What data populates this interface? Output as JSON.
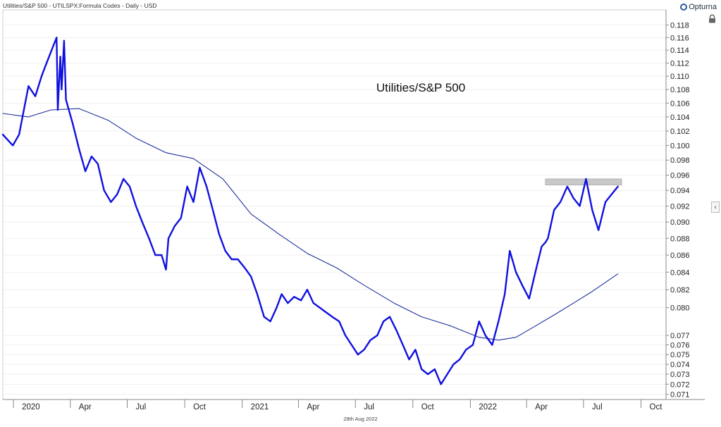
{
  "header": {
    "series_info": "Utilities/S&P 500 - UTILSPX:Formula Codes - Daily - USD"
  },
  "brand": {
    "name": "Opturna",
    "icon": "opturna-logo-icon"
  },
  "footer": {
    "date": "28th Aug 2022"
  },
  "controls": {
    "lock_icon": "lock-icon",
    "collapse_icon": "chevron-left-icon",
    "collapse_glyph": "‹"
  },
  "colors": {
    "price_line": "#1010e0",
    "ma_line": "#1c2e9a",
    "highlight_band": "#c8c8c8",
    "grid": "#e6e6e6",
    "axis": "#888888"
  },
  "chart_data": {
    "type": "line",
    "title": "Utilities/S&P 500",
    "x_tick_labels": [
      "2020",
      "Apr",
      "Jul",
      "Oct",
      "2021",
      "Apr",
      "Jul",
      "Oct",
      "2022",
      "Apr",
      "Jul",
      "Oct"
    ],
    "x_tick_dates": [
      "2020-01-01",
      "2020-04-01",
      "2020-07-01",
      "2020-10-01",
      "2021-01-01",
      "2021-04-01",
      "2021-07-01",
      "2021-10-01",
      "2022-01-01",
      "2022-04-01",
      "2022-07-01",
      "2022-10-01"
    ],
    "y_scale": "log",
    "y_range": [
      0.0705,
      0.1205
    ],
    "y_tick_labels": [
      "0.071",
      "0.072",
      "0.073",
      "0.074",
      "0.075",
      "0.076",
      "0.077",
      "0.080",
      "0.082",
      "0.084",
      "0.086",
      "0.088",
      "0.090",
      "0.092",
      "0.094",
      "0.096",
      "0.098",
      "0.100",
      "0.102",
      "0.104",
      "0.106",
      "0.108",
      "0.110",
      "0.112",
      "0.114",
      "0.116",
      "0.118"
    ],
    "x_range": [
      "2019-12-15",
      "2022-11-10"
    ],
    "highlight_band": {
      "x_start": "2022-05-01",
      "x_end": "2022-08-31",
      "y_low": 0.0947,
      "y_high": 0.0955
    },
    "series": [
      {
        "name": "Utilities/S&P 500",
        "x": [
          "2019-12-15",
          "2019-12-31",
          "2020-01-10",
          "2020-01-25",
          "2020-02-05",
          "2020-02-15",
          "2020-02-21",
          "2020-03-04",
          "2020-03-10",
          "2020-03-12",
          "2020-03-16",
          "2020-03-18",
          "2020-03-22",
          "2020-03-25",
          "2020-04-05",
          "2020-04-15",
          "2020-04-25",
          "2020-05-05",
          "2020-05-15",
          "2020-05-25",
          "2020-06-05",
          "2020-06-15",
          "2020-06-25",
          "2020-07-05",
          "2020-07-15",
          "2020-07-25",
          "2020-08-05",
          "2020-08-15",
          "2020-08-25",
          "2020-09-01",
          "2020-09-05",
          "2020-09-15",
          "2020-09-25",
          "2020-10-05",
          "2020-10-15",
          "2020-10-25",
          "2020-11-05",
          "2020-11-15",
          "2020-11-25",
          "2020-12-05",
          "2020-12-15",
          "2020-12-25",
          "2021-01-05",
          "2021-01-15",
          "2021-01-25",
          "2021-02-05",
          "2021-02-15",
          "2021-02-25",
          "2021-03-05",
          "2021-03-15",
          "2021-03-25",
          "2021-04-05",
          "2021-04-15",
          "2021-04-25",
          "2021-05-05",
          "2021-05-15",
          "2021-05-25",
          "2021-06-05",
          "2021-06-15",
          "2021-06-25",
          "2021-07-05",
          "2021-07-15",
          "2021-07-25",
          "2021-08-05",
          "2021-08-15",
          "2021-08-25",
          "2021-09-05",
          "2021-09-15",
          "2021-09-25",
          "2021-10-05",
          "2021-10-15",
          "2021-10-25",
          "2021-11-05",
          "2021-11-15",
          "2021-11-25",
          "2021-12-05",
          "2021-12-15",
          "2021-12-25",
          "2022-01-05",
          "2022-01-15",
          "2022-01-25",
          "2022-02-05",
          "2022-02-15",
          "2022-02-25",
          "2022-03-05",
          "2022-03-15",
          "2022-03-25",
          "2022-04-05",
          "2022-04-15",
          "2022-04-25",
          "2022-05-01",
          "2022-05-05",
          "2022-05-15",
          "2022-05-25",
          "2022-06-05",
          "2022-06-15",
          "2022-06-25",
          "2022-07-05",
          "2022-07-15",
          "2022-07-25",
          "2022-08-05",
          "2022-08-15",
          "2022-08-25"
        ],
        "values": [
          0.1015,
          0.1,
          0.1015,
          0.1085,
          0.107,
          0.11,
          0.1115,
          0.1145,
          0.116,
          0.105,
          0.113,
          0.108,
          0.1155,
          0.1065,
          0.103,
          0.0995,
          0.0965,
          0.0985,
          0.0975,
          0.094,
          0.0925,
          0.0935,
          0.0955,
          0.0945,
          0.092,
          0.09,
          0.088,
          0.086,
          0.086,
          0.0843,
          0.088,
          0.0895,
          0.0905,
          0.0945,
          0.0925,
          0.097,
          0.0945,
          0.0915,
          0.0885,
          0.0865,
          0.0855,
          0.0855,
          0.0845,
          0.0835,
          0.0815,
          0.079,
          0.0785,
          0.08,
          0.0815,
          0.0805,
          0.0812,
          0.0808,
          0.082,
          0.0805,
          0.08,
          0.0795,
          0.079,
          0.0785,
          0.077,
          0.076,
          0.075,
          0.0755,
          0.0765,
          0.077,
          0.0785,
          0.079,
          0.0775,
          0.076,
          0.0745,
          0.0755,
          0.0735,
          0.073,
          0.0735,
          0.072,
          0.073,
          0.074,
          0.0745,
          0.0755,
          0.076,
          0.0785,
          0.077,
          0.076,
          0.0785,
          0.0815,
          0.0865,
          0.084,
          0.0825,
          0.081,
          0.084,
          0.087,
          0.0875,
          0.088,
          0.0915,
          0.0925,
          0.0945,
          0.093,
          0.092,
          0.0955,
          0.0915,
          0.089,
          0.0925,
          0.0935,
          0.0945
        ]
      },
      {
        "name": "",
        "x": [
          "2019-12-15",
          "2020-01-25",
          "2020-03-01",
          "2020-04-15",
          "2020-06-01",
          "2020-07-15",
          "2020-09-01",
          "2020-10-15",
          "2020-12-01",
          "2021-01-15",
          "2021-03-01",
          "2021-04-15",
          "2021-06-01",
          "2021-07-15",
          "2021-09-01",
          "2021-10-15",
          "2021-12-01",
          "2022-01-15",
          "2022-02-15",
          "2022-03-15",
          "2022-04-15",
          "2022-05-15",
          "2022-06-15",
          "2022-07-15",
          "2022-08-25"
        ],
        "values": [
          0.1045,
          0.104,
          0.105,
          0.1052,
          0.1035,
          0.101,
          0.099,
          0.0982,
          0.0955,
          0.091,
          0.0885,
          0.0862,
          0.0845,
          0.0825,
          0.0805,
          0.079,
          0.078,
          0.0768,
          0.0765,
          0.0768,
          0.078,
          0.0792,
          0.0805,
          0.0818,
          0.0838
        ]
      }
    ]
  }
}
